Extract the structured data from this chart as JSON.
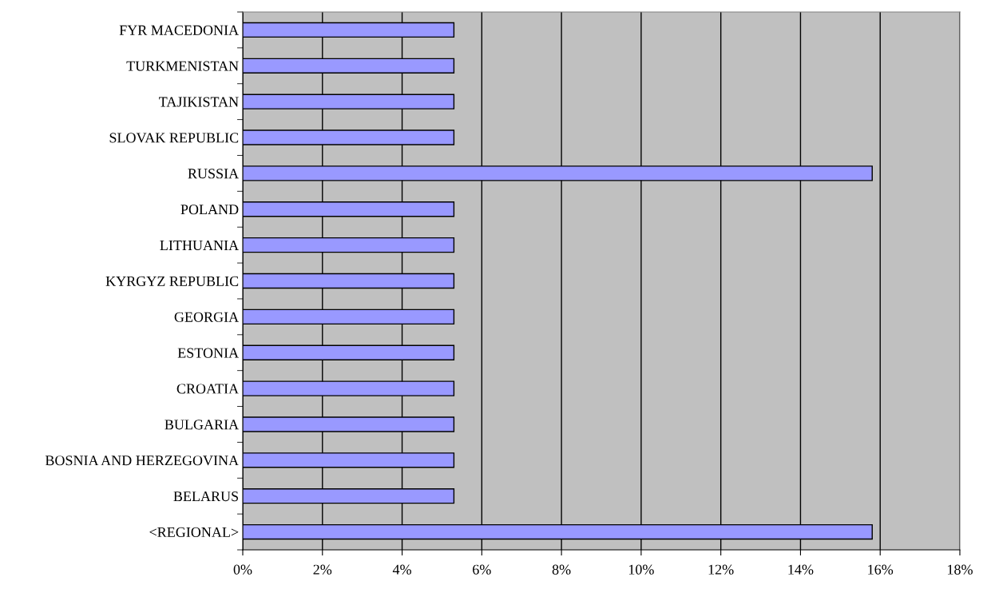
{
  "chart_data": {
    "type": "bar",
    "orientation": "horizontal",
    "categories": [
      "FYR MACEDONIA",
      "TURKMENISTAN",
      "TAJIKISTAN",
      "SLOVAK REPUBLIC",
      "RUSSIA",
      "POLAND",
      "LITHUANIA",
      "KYRGYZ REPUBLIC",
      "GEORGIA",
      "ESTONIA",
      "CROATIA",
      "BULGARIA",
      "BOSNIA AND HERZEGOVINA",
      "BELARUS",
      "<REGIONAL>"
    ],
    "values": [
      5.3,
      5.3,
      5.3,
      5.3,
      15.8,
      5.3,
      5.3,
      5.3,
      5.3,
      5.3,
      5.3,
      5.3,
      5.3,
      5.3,
      15.8
    ],
    "color": "#9999ff",
    "xlim": [
      0,
      18
    ],
    "xticks": [
      {
        "value": 0,
        "label": "0%"
      },
      {
        "value": 2,
        "label": "2%"
      },
      {
        "value": 4,
        "label": "4%"
      },
      {
        "value": 6,
        "label": "6%"
      },
      {
        "value": 8,
        "label": "8%"
      },
      {
        "value": 10,
        "label": "10%"
      },
      {
        "value": 12,
        "label": "12%"
      },
      {
        "value": 14,
        "label": "14%"
      },
      {
        "value": 16,
        "label": "16%"
      },
      {
        "value": 18,
        "label": "18%"
      }
    ],
    "grid": "x"
  }
}
